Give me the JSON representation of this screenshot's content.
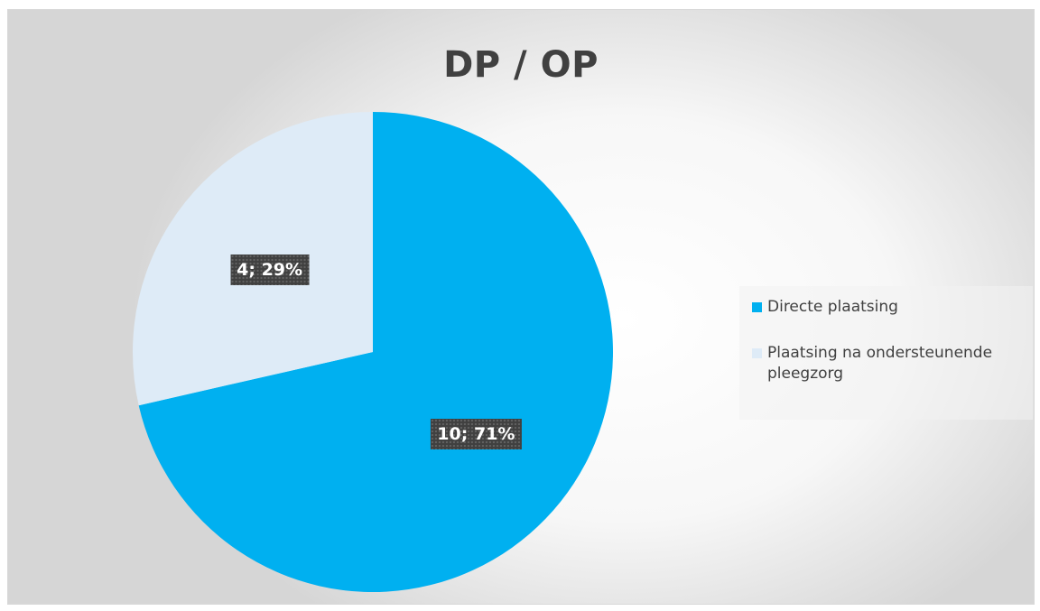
{
  "chart_data": {
    "type": "pie",
    "title": "DP / OP",
    "categories": [
      "Directe plaatsing",
      "Plaatsing na ondersteunende pleegzorg"
    ],
    "values": [
      10,
      4
    ],
    "percentages": [
      71,
      29
    ],
    "data_labels": [
      "10; 71%",
      "4; 29%"
    ],
    "colors": [
      "#00B0F0",
      "#DEEBF7"
    ],
    "legend_position": "right"
  }
}
